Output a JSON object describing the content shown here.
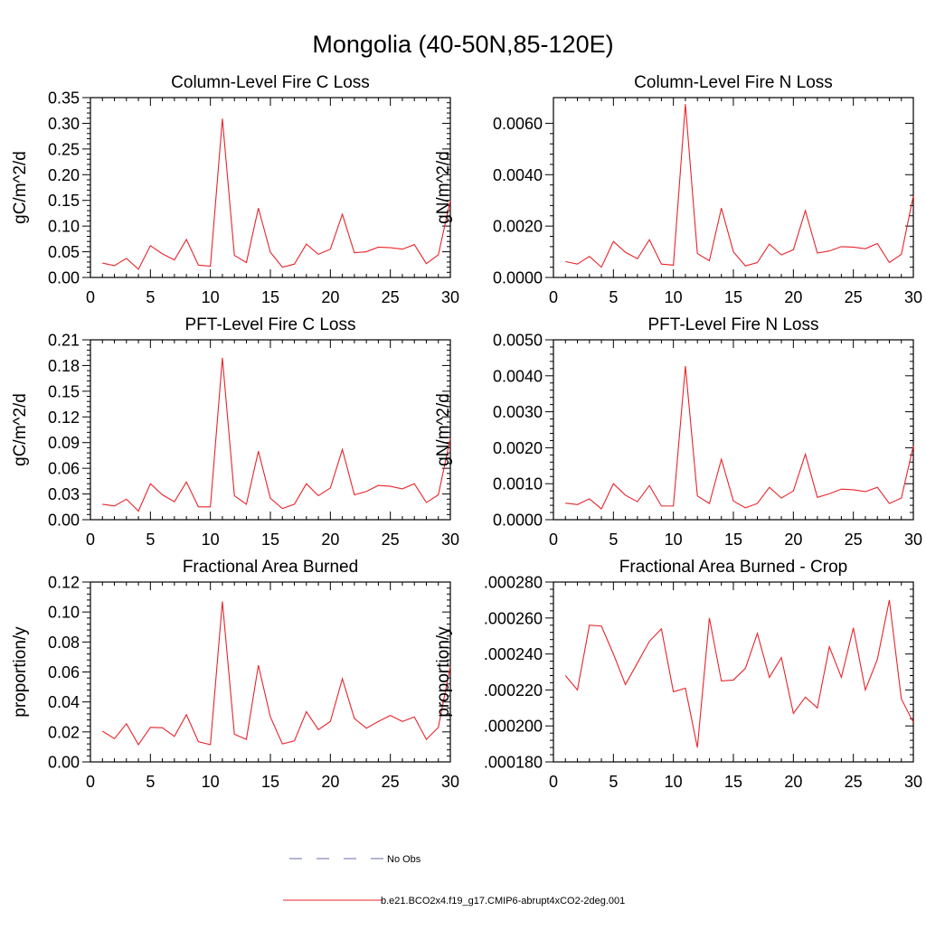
{
  "figure": {
    "title": "Mongolia (40-50N,85-120E)"
  },
  "legend": {
    "items": [
      {
        "label": "No Obs",
        "color": "#6a6aa8",
        "style": "dashed"
      },
      {
        "label": "b.e21.BCO2x4.f19_g17.CMIP6-abrupt4xCO2-2deg.001",
        "color": "#e8242b",
        "style": "solid"
      }
    ]
  },
  "chart_data": [
    {
      "type": "line",
      "title": "Column-Level Fire C Loss",
      "ylabel": "gC/m^2/d",
      "xlim": [
        0,
        30
      ],
      "ylim": [
        0,
        0.35
      ],
      "xticks": [
        0,
        5,
        10,
        15,
        20,
        25,
        30
      ],
      "xticklabels": [
        "0",
        "5",
        "10",
        "15",
        "20",
        "25",
        "30"
      ],
      "yticks": [
        0,
        0.05,
        0.1,
        0.15,
        0.2,
        0.25,
        0.3,
        0.35
      ],
      "yticklabels": [
        "0.00",
        "0.05",
        "0.10",
        "0.15",
        "0.20",
        "0.25",
        "0.30",
        "0.35"
      ],
      "color": "#e8242b",
      "x": [
        1,
        2,
        3,
        4,
        5,
        6,
        7,
        8,
        9,
        10,
        11,
        12,
        13,
        14,
        15,
        16,
        17,
        18,
        19,
        20,
        21,
        22,
        23,
        24,
        25,
        26,
        27,
        28,
        29,
        30
      ],
      "values": [
        0.028,
        0.023,
        0.037,
        0.016,
        0.062,
        0.046,
        0.034,
        0.074,
        0.024,
        0.022,
        0.309,
        0.043,
        0.029,
        0.135,
        0.049,
        0.02,
        0.026,
        0.065,
        0.045,
        0.055,
        0.123,
        0.048,
        0.05,
        0.059,
        0.058,
        0.055,
        0.064,
        0.027,
        0.044,
        0.15
      ]
    },
    {
      "type": "line",
      "title": "Column-Level Fire N Loss",
      "ylabel": "gN/m^2/d",
      "xlim": [
        0,
        30
      ],
      "ylim": [
        0,
        0.007
      ],
      "xticks": [
        0,
        5,
        10,
        15,
        20,
        25,
        30
      ],
      "xticklabels": [
        "0",
        "5",
        "10",
        "15",
        "20",
        "25",
        "30"
      ],
      "yticks": [
        0,
        0.002,
        0.004,
        0.006
      ],
      "yticklabels": [
        "0.0000",
        "0.0020",
        "0.0040",
        "0.0060"
      ],
      "color": "#e8242b",
      "x": [
        1,
        2,
        3,
        4,
        5,
        6,
        7,
        8,
        9,
        10,
        11,
        12,
        13,
        14,
        15,
        16,
        17,
        18,
        19,
        20,
        21,
        22,
        23,
        24,
        25,
        26,
        27,
        28,
        29,
        30
      ],
      "values": [
        0.00062,
        0.00052,
        0.00082,
        0.0004,
        0.0014,
        0.00098,
        0.00073,
        0.00147,
        0.00052,
        0.00048,
        0.00675,
        0.00093,
        0.00065,
        0.0027,
        0.001,
        0.00045,
        0.00058,
        0.0013,
        0.00088,
        0.00108,
        0.0026,
        0.00095,
        0.00103,
        0.0012,
        0.00118,
        0.00112,
        0.00132,
        0.00058,
        0.0009,
        0.00318
      ]
    },
    {
      "type": "line",
      "title": "PFT-Level Fire C Loss",
      "ylabel": "gC/m^2/d",
      "xlim": [
        0,
        30
      ],
      "ylim": [
        0,
        0.21
      ],
      "xticks": [
        0,
        5,
        10,
        15,
        20,
        25,
        30
      ],
      "xticklabels": [
        "0",
        "5",
        "10",
        "15",
        "20",
        "25",
        "30"
      ],
      "yticks": [
        0,
        0.03,
        0.06,
        0.09,
        0.12,
        0.15,
        0.18,
        0.21
      ],
      "yticklabels": [
        "0.00",
        "0.03",
        "0.06",
        "0.09",
        "0.12",
        "0.15",
        "0.18",
        "0.21"
      ],
      "color": "#e8242b",
      "x": [
        1,
        2,
        3,
        4,
        5,
        6,
        7,
        8,
        9,
        10,
        11,
        12,
        13,
        14,
        15,
        16,
        17,
        18,
        19,
        20,
        21,
        22,
        23,
        24,
        25,
        26,
        27,
        28,
        29,
        30
      ],
      "values": [
        0.018,
        0.016,
        0.024,
        0.01,
        0.042,
        0.029,
        0.021,
        0.044,
        0.015,
        0.015,
        0.189,
        0.028,
        0.018,
        0.08,
        0.025,
        0.013,
        0.018,
        0.042,
        0.028,
        0.037,
        0.082,
        0.029,
        0.033,
        0.04,
        0.039,
        0.036,
        0.042,
        0.02,
        0.029,
        0.095
      ]
    },
    {
      "type": "line",
      "title": "PFT-Level Fire N Loss",
      "ylabel": "gN/m^2/d",
      "xlim": [
        0,
        30
      ],
      "ylim": [
        0,
        0.005
      ],
      "xticks": [
        0,
        5,
        10,
        15,
        20,
        25,
        30
      ],
      "xticklabels": [
        "0",
        "5",
        "10",
        "15",
        "20",
        "25",
        "30"
      ],
      "yticks": [
        0,
        0.001,
        0.002,
        0.003,
        0.004,
        0.005
      ],
      "yticklabels": [
        "0.0000",
        "0.0010",
        "0.0020",
        "0.0030",
        "0.0040",
        "0.0050"
      ],
      "color": "#e8242b",
      "x": [
        1,
        2,
        3,
        4,
        5,
        6,
        7,
        8,
        9,
        10,
        11,
        12,
        13,
        14,
        15,
        16,
        17,
        18,
        19,
        20,
        21,
        22,
        23,
        24,
        25,
        26,
        27,
        28,
        29,
        30
      ],
      "values": [
        0.00046,
        0.00042,
        0.00058,
        0.0003,
        0.001,
        0.00068,
        0.0005,
        0.00095,
        0.00038,
        0.00038,
        0.00427,
        0.00066,
        0.00045,
        0.00168,
        0.00052,
        0.00033,
        0.00045,
        0.0009,
        0.0006,
        0.0008,
        0.00182,
        0.00062,
        0.00072,
        0.00085,
        0.00083,
        0.00078,
        0.0009,
        0.00045,
        0.0006,
        0.00205
      ]
    },
    {
      "type": "line",
      "title": "Fractional Area Burned",
      "ylabel": "proportion/y",
      "xlim": [
        0,
        30
      ],
      "ylim": [
        0,
        0.12
      ],
      "xticks": [
        0,
        5,
        10,
        15,
        20,
        25,
        30
      ],
      "xticklabels": [
        "0",
        "5",
        "10",
        "15",
        "20",
        "25",
        "30"
      ],
      "yticks": [
        0,
        0.02,
        0.04,
        0.06,
        0.08,
        0.1,
        0.12
      ],
      "yticklabels": [
        "0.00",
        "0.02",
        "0.04",
        "0.06",
        "0.08",
        "0.10",
        "0.12"
      ],
      "color": "#e8242b",
      "x": [
        1,
        2,
        3,
        4,
        5,
        6,
        7,
        8,
        9,
        10,
        11,
        12,
        13,
        14,
        15,
        16,
        17,
        18,
        19,
        20,
        21,
        22,
        23,
        24,
        25,
        26,
        27,
        28,
        29,
        30
      ],
      "values": [
        0.0205,
        0.0155,
        0.0255,
        0.0115,
        0.023,
        0.0228,
        0.017,
        0.0315,
        0.0135,
        0.0115,
        0.107,
        0.0185,
        0.015,
        0.0645,
        0.03,
        0.012,
        0.014,
        0.0335,
        0.0215,
        0.027,
        0.0555,
        0.029,
        0.0225,
        0.027,
        0.031,
        0.027,
        0.03,
        0.015,
        0.023,
        0.064
      ]
    },
    {
      "type": "line",
      "title": "Fractional Area Burned - Crop",
      "ylabel": "proportion/y",
      "xlim": [
        0,
        30
      ],
      "ylim": [
        0.00018,
        0.00028
      ],
      "xticks": [
        0,
        5,
        10,
        15,
        20,
        25,
        30
      ],
      "xticklabels": [
        "0",
        "5",
        "10",
        "15",
        "20",
        "25",
        "30"
      ],
      "yticks": [
        0.00018,
        0.0002,
        0.00022,
        0.00024,
        0.00026,
        0.00028
      ],
      "yticklabels": [
        ".000180",
        ".000200",
        ".000220",
        ".000240",
        ".000260",
        ".000280"
      ],
      "color": "#e8242b",
      "x": [
        1,
        2,
        3,
        4,
        5,
        6,
        7,
        8,
        9,
        10,
        11,
        12,
        13,
        14,
        15,
        16,
        17,
        18,
        19,
        20,
        21,
        22,
        23,
        24,
        25,
        26,
        27,
        28,
        29,
        30
      ],
      "values": [
        0.000228,
        0.00022,
        0.000256,
        0.0002555,
        0.00024,
        0.000223,
        0.000235,
        0.000247,
        0.000254,
        0.000219,
        0.000221,
        0.000188,
        0.00026,
        0.000225,
        0.0002255,
        0.000232,
        0.0002515,
        0.000227,
        0.000238,
        0.000207,
        0.000216,
        0.00021,
        0.000244,
        0.000227,
        0.0002545,
        0.00022,
        0.000237,
        0.00027,
        0.000215,
        0.000202
      ]
    }
  ]
}
